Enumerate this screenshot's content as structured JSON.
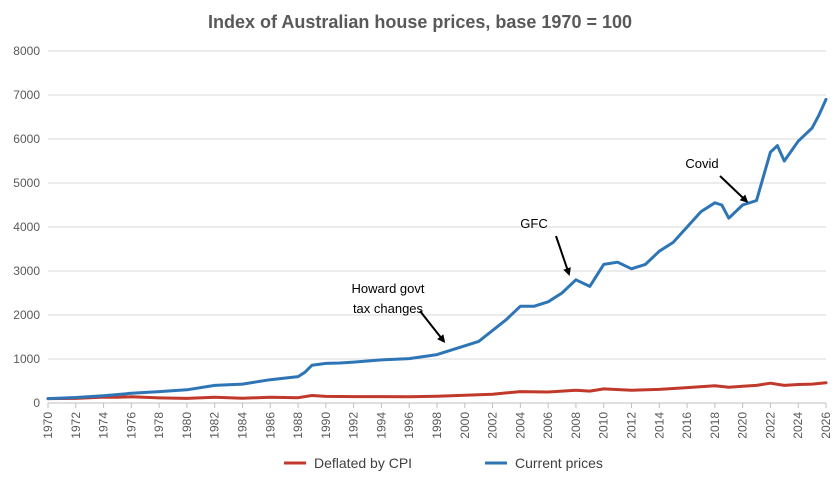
{
  "chart_data": {
    "type": "line",
    "title": "Index of Australian house prices, base 1970 = 100",
    "xlim": [
      1970,
      2026
    ],
    "ylim": [
      0,
      8000
    ],
    "grid": true,
    "legend_position": "bottom",
    "x_ticks": [
      "1970",
      "1972",
      "1974",
      "1976",
      "1978",
      "1980",
      "1982",
      "1984",
      "1986",
      "1988",
      "1990",
      "1992",
      "1994",
      "1996",
      "1998",
      "2000",
      "2002",
      "2004",
      "2006",
      "2008",
      "2010",
      "2012",
      "2014",
      "2016",
      "2018",
      "2020",
      "2022",
      "2024",
      "2026"
    ],
    "y_ticks": [
      "0",
      "1000",
      "2000",
      "3000",
      "4000",
      "5000",
      "6000",
      "7000",
      "8000"
    ],
    "series": [
      {
        "name": "Deflated by CPI",
        "color": "#C0392B",
        "points": [
          [
            1970,
            100
          ],
          [
            1972,
            105
          ],
          [
            1974,
            135
          ],
          [
            1975,
            130
          ],
          [
            1976,
            140
          ],
          [
            1978,
            115
          ],
          [
            1980,
            105
          ],
          [
            1982,
            130
          ],
          [
            1984,
            110
          ],
          [
            1986,
            130
          ],
          [
            1988,
            120
          ],
          [
            1989,
            170
          ],
          [
            1990,
            150
          ],
          [
            1992,
            145
          ],
          [
            1994,
            145
          ],
          [
            1996,
            140
          ],
          [
            1998,
            155
          ],
          [
            2000,
            175
          ],
          [
            2002,
            200
          ],
          [
            2004,
            260
          ],
          [
            2006,
            250
          ],
          [
            2008,
            290
          ],
          [
            2009,
            270
          ],
          [
            2010,
            320
          ],
          [
            2012,
            290
          ],
          [
            2014,
            310
          ],
          [
            2016,
            350
          ],
          [
            2018,
            390
          ],
          [
            2019,
            360
          ],
          [
            2020,
            380
          ],
          [
            2021,
            400
          ],
          [
            2022,
            450
          ],
          [
            2023,
            400
          ],
          [
            2024,
            420
          ],
          [
            2025,
            430
          ],
          [
            2026,
            460
          ]
        ]
      },
      {
        "name": "Current prices",
        "color": "#2E75B6",
        "points": [
          [
            1970,
            100
          ],
          [
            1972,
            125
          ],
          [
            1974,
            165
          ],
          [
            1976,
            220
          ],
          [
            1978,
            260
          ],
          [
            1980,
            300
          ],
          [
            1982,
            400
          ],
          [
            1984,
            430
          ],
          [
            1986,
            530
          ],
          [
            1988,
            600
          ],
          [
            1988.5,
            700
          ],
          [
            1989,
            860
          ],
          [
            1990,
            900
          ],
          [
            1991,
            910
          ],
          [
            1992,
            930
          ],
          [
            1994,
            980
          ],
          [
            1996,
            1010
          ],
          [
            1998,
            1100
          ],
          [
            2000,
            1300
          ],
          [
            2001,
            1400
          ],
          [
            2002,
            1650
          ],
          [
            2003,
            1900
          ],
          [
            2004,
            2200
          ],
          [
            2005,
            2200
          ],
          [
            2006,
            2300
          ],
          [
            2007,
            2500
          ],
          [
            2008,
            2800
          ],
          [
            2009,
            2650
          ],
          [
            2010,
            3150
          ],
          [
            2011,
            3200
          ],
          [
            2012,
            3050
          ],
          [
            2013,
            3150
          ],
          [
            2014,
            3450
          ],
          [
            2015,
            3650
          ],
          [
            2016,
            4000
          ],
          [
            2017,
            4350
          ],
          [
            2018,
            4550
          ],
          [
            2018.5,
            4500
          ],
          [
            2019,
            4200
          ],
          [
            2020,
            4500
          ],
          [
            2021,
            4600
          ],
          [
            2022,
            5700
          ],
          [
            2022.5,
            5850
          ],
          [
            2023,
            5500
          ],
          [
            2024,
            5950
          ],
          [
            2025,
            6250
          ],
          [
            2025.5,
            6550
          ],
          [
            2026,
            6900
          ]
        ]
      }
    ],
    "annotations": [
      {
        "lines": [
          "Howard govt",
          "tax changes"
        ],
        "arrow_to": [
          1998.5,
          1400
        ]
      },
      {
        "lines": [
          "GFC"
        ],
        "arrow_to": [
          2007.5,
          2930
        ]
      },
      {
        "lines": [
          "Covid"
        ],
        "arrow_to": [
          2020.3,
          4580
        ]
      }
    ]
  }
}
